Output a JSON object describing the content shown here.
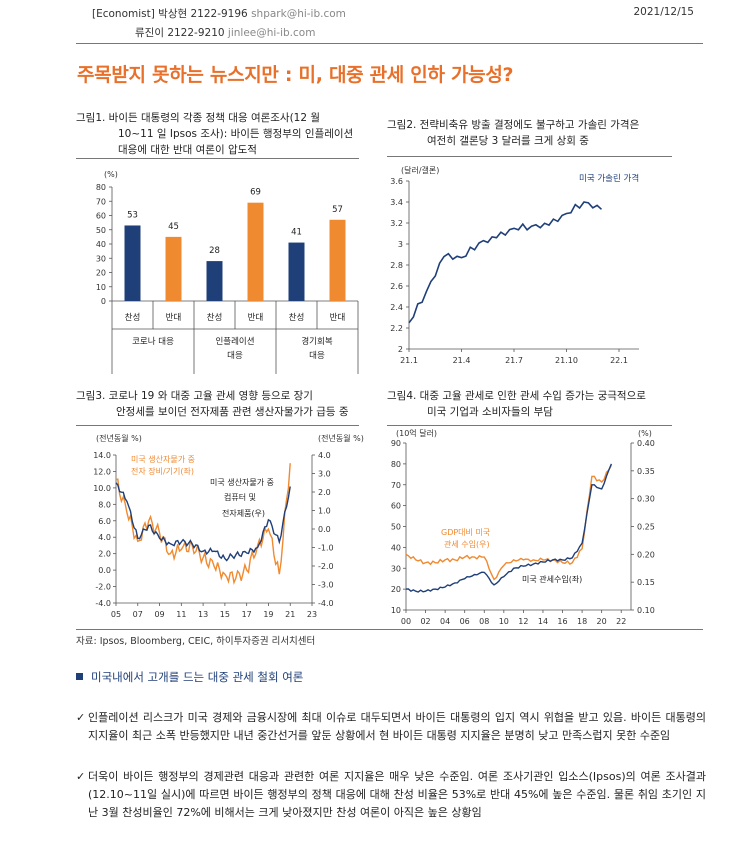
{
  "header": {
    "line1_label": "[Economist] 박상현 2122-9196",
    "line1_email": "shpark@hi-ib.com",
    "line2_label": "류진이 2122-9210",
    "line2_email": "jinlee@hi-ib.com",
    "date": "2021/12/15"
  },
  "title": "주목받지 못하는 뉴스지만 : 미, 대중 관세 인하 가능성?",
  "fig1": {
    "caption1": "그림1. 바이든 대통령의 각종 정책 대응 여론조사(12 월",
    "caption2": "10~11 일 Ipsos 조사): 바이든 행정부의 인플레이션",
    "caption3": "대응에 대한 반대 여론이 압도적",
    "unit": "(%)",
    "bar_labels": [
      "찬성",
      "반대",
      "찬성",
      "반대",
      "찬성",
      "반대"
    ],
    "group_labels": [
      [
        "코로나 대응",
        ""
      ],
      [
        "인플레이션",
        "대응"
      ],
      [
        "경기회복",
        "대응"
      ]
    ]
  },
  "fig2": {
    "caption1": "그림2. 전략비축유 방출 결정에도 불구하고 가솔린 가격은",
    "caption2": "여전히 갤론당 3 달러를 크게 상회 중",
    "unit": "(달러/갤론)",
    "legend": "미국 가솔린 가격"
  },
  "fig3": {
    "caption1": "그림3.  코로나 19 와 대중 고율 관세 영향 등으로 장기",
    "caption2": "안정세를 보이던 전자제품 관련 생산자물가가 급등 중",
    "unit_left": "(전년동월 %)",
    "unit_right": "(전년동월 %)",
    "label_a1": "미국 생산자물가 중",
    "label_a2": "전자 장비/기기(좌)",
    "label_b1": "미국 생산자물가 중",
    "label_b2": "컴퓨터 및",
    "label_b3": "전자제품(우)"
  },
  "fig4": {
    "caption1": "그림4. 대중 고율 관세로 인한 관세 수입 증가는 궁극적으로",
    "caption2": "미국 기업과 소비자들의 부담",
    "unit_left": "(10억 달러)",
    "unit_right": "(%)",
    "label_a1": "GDP대비 미국",
    "label_a2": "관세 수입(우)",
    "label_b": "미국 관세수입(좌)"
  },
  "source": "자료: Ipsos, Bloomberg, CEIC, 하이투자증권 리서치센터",
  "section_heading": "미국내에서 고개를 드는 대중 관세 철회 여론",
  "para1": "인플레이션 리스크가 미국 경제와 금융시장에 최대 이슈로 대두되면서 바이든 대통령의 입지 역시 위협을 받고 있음. 바이든 대통령의 지지율이 최근 소폭 반등했지만 내년 중간선거를 앞둔 상황에서 현 바이든 대통령 지지율은 분명히 낮고 만족스럽지 못한 수준임",
  "para2": "더욱이 바이든 행정부의 경제관련 대응과 관련한 여론 지지율은 매우 낮은 수준임. 여론 조사기관인 입소스(Ipsos)의 여론 조사결과(12.10~11일 실시)에 따르면 바이든 행정부의 정책 대응에 대해 찬성 비율은 53%로 반대 45%에 높은 수준임. 물론 취임 초기인 지난 3월 찬성비율인 72%에 비해서는 크게 낮아졌지만 찬성 여론이 아직은 높은 상황임",
  "colors": {
    "navy": "#1f3f78",
    "orange": "#f08a30",
    "title": "#e8702a"
  },
  "chart_data": [
    {
      "type": "bar",
      "categories": [
        "찬성",
        "반대",
        "찬성",
        "반대",
        "찬성",
        "반대"
      ],
      "values": [
        53,
        45,
        28,
        69,
        41,
        57
      ],
      "ylim": [
        0,
        80
      ],
      "yticks": [
        0,
        10,
        20,
        30,
        40,
        50,
        60,
        70,
        80
      ]
    },
    {
      "type": "line",
      "x": [
        "2021-01",
        "2021-02",
        "2021-03",
        "2021-04",
        "2021-05",
        "2021-06",
        "2021-07",
        "2021-08",
        "2021-09",
        "2021-10",
        "2021-11",
        "2021-12"
      ],
      "series": [
        {
          "name": "미국 가솔린 가격",
          "values": [
            2.25,
            2.55,
            2.88,
            2.87,
            3.01,
            3.06,
            3.15,
            3.17,
            3.18,
            3.29,
            3.4,
            3.33
          ]
        }
      ],
      "ylim": [
        2.0,
        3.6
      ],
      "yticks": [
        "2",
        "2.2",
        "2.4",
        "2.6",
        "2.8",
        "3",
        "3.2",
        "3.4",
        "3.6"
      ],
      "xticks": [
        "21.1",
        "21.4",
        "21.7",
        "21.10",
        "22.1"
      ]
    },
    {
      "type": "line",
      "x": [
        2005,
        2006,
        2007,
        2008,
        2009,
        2010,
        2011,
        2012,
        2013,
        2014,
        2015,
        2016,
        2017,
        2018,
        2019,
        2020,
        2021
      ],
      "series": [
        {
          "name": "미국 생산자물가 중 전자 장비/기기(좌)",
          "values": [
            11,
            7,
            3.5,
            6,
            4.5,
            2,
            2.5,
            3,
            1.5,
            0.5,
            -0.5,
            -1,
            0,
            3,
            5,
            -0.5,
            13
          ]
        },
        {
          "name": "미국 생산자물가 중 컴퓨터 및 전자제품(우)",
          "values": [
            2.5,
            1.5,
            -0.5,
            0.2,
            -0.5,
            -0.8,
            -0.7,
            -0.8,
            -1.2,
            -1.2,
            -1.6,
            -1.4,
            -1.3,
            -1,
            0.5,
            -0.7,
            2.3
          ]
        }
      ],
      "ylim_left": [
        -4,
        14
      ],
      "ylim_right": [
        -4,
        4
      ],
      "yticks_left": [
        "14.0",
        "12.0",
        "10.0",
        "8.0",
        "6.0",
        "4.0",
        "2.0",
        "0.0",
        "-2.0",
        "-4.0"
      ],
      "yticks_right": [
        "4.0",
        "3.0",
        "2.0",
        "1.0",
        "0.0",
        "-1.0",
        "-2.0",
        "-3.0",
        "-4.0"
      ],
      "xticks": [
        "05",
        "07",
        "09",
        "11",
        "13",
        "15",
        "17",
        "19",
        "21",
        "23"
      ]
    },
    {
      "type": "line",
      "x": [
        2000,
        2001,
        2002,
        2003,
        2004,
        2005,
        2006,
        2007,
        2008,
        2009,
        2010,
        2011,
        2012,
        2013,
        2014,
        2015,
        2016,
        2017,
        2018,
        2019,
        2020,
        2021
      ],
      "series": [
        {
          "name": "미국 관세수입(좌)",
          "values": [
            20,
            19,
            19,
            20,
            21,
            23,
            25,
            27,
            28,
            22,
            26,
            30,
            31,
            32,
            33,
            34,
            34,
            35,
            42,
            70,
            68,
            80
          ]
        },
        {
          "name": "GDP대비 미국 관세 수입(우)",
          "values": [
            0.2,
            0.19,
            0.185,
            0.185,
            0.19,
            0.19,
            0.195,
            0.195,
            0.195,
            0.155,
            0.18,
            0.19,
            0.19,
            0.19,
            0.19,
            0.19,
            0.185,
            0.185,
            0.21,
            0.34,
            0.33,
            0.36
          ]
        }
      ],
      "ylim_left": [
        10,
        90
      ],
      "ylim_right": [
        0.1,
        0.4
      ],
      "yticks_left": [
        "90",
        "80",
        "70",
        "60",
        "50",
        "40",
        "30",
        "20",
        "10"
      ],
      "yticks_right": [
        "0.40",
        "0.35",
        "0.30",
        "0.25",
        "0.20",
        "0.15",
        "0.10"
      ],
      "xticks": [
        "00",
        "02",
        "04",
        "06",
        "08",
        "10",
        "12",
        "14",
        "16",
        "18",
        "20",
        "22"
      ]
    }
  ]
}
